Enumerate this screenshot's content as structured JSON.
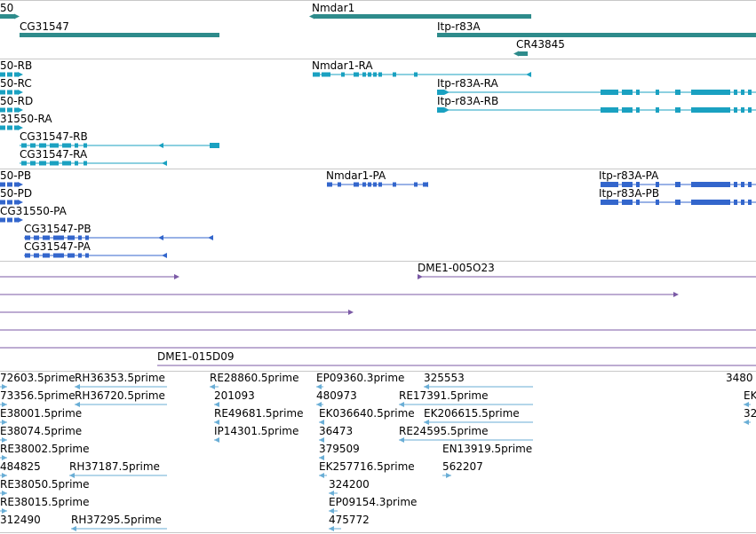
{
  "colors": {
    "gene": "#2e8b8b",
    "transcript": "#1aa1c1",
    "protein": "#3366cc",
    "match": "#7b5aa6",
    "est": "#6aaed6",
    "separator": "#c8c8c8"
  },
  "tracks": {
    "genes": {
      "items": [
        {
          "label": "50",
          "dir": "right"
        },
        {
          "label": "CG31547",
          "dir": "none"
        },
        {
          "label": "Nmdar1",
          "dir": "left"
        },
        {
          "label": "Itp-r83A",
          "dir": "none"
        },
        {
          "label": "CR43845",
          "dir": "left"
        }
      ]
    },
    "transcripts": {
      "items": [
        {
          "label": "50-RB"
        },
        {
          "label": "50-RC"
        },
        {
          "label": "50-RD"
        },
        {
          "label": "31550-RA"
        },
        {
          "label": "CG31547-RB"
        },
        {
          "label": "CG31547-RA"
        },
        {
          "label": "Nmdar1-RA"
        },
        {
          "label": "Itp-r83A-RA"
        },
        {
          "label": "Itp-r83A-RB"
        }
      ]
    },
    "proteins": {
      "items": [
        {
          "label": "50-PB"
        },
        {
          "label": "50-PD"
        },
        {
          "label": "CG31550-PA"
        },
        {
          "label": "CG31547-PB"
        },
        {
          "label": "CG31547-PA"
        },
        {
          "label": "Nmdar1-PA"
        },
        {
          "label": "Itp-r83A-PA"
        },
        {
          "label": "Itp-r83A-PB"
        }
      ]
    },
    "matches": {
      "items": [
        {
          "label": "DME1-005O23"
        },
        {
          "label": "DME1-015D09"
        }
      ]
    },
    "ests": {
      "items": [
        "72603.5prime",
        "RH36353.5prime",
        "RE28860.5prime",
        "EP09360.3prime",
        "325553",
        "3480",
        "73356.5prime",
        "RH36720.5prime",
        "201093",
        "480973",
        "RE17391.5prime",
        "EK",
        "E38001.5prime",
        "RE49681.5prime",
        "EK036640.5prime",
        "EK206615.5prime",
        "32",
        "E38074.5prime",
        "IP14301.5prime",
        "36473",
        "RE24595.5prime",
        "RE38002.5prime",
        "379509",
        "EN13919.5prime",
        "484825",
        "RH37187.5prime",
        "EK257716.5prime",
        "562207",
        "RE38050.5prime",
        "324200",
        "RE38015.5prime",
        "EP09154.3prime",
        "312490",
        "RH37295.5prime",
        "475772"
      ]
    }
  }
}
